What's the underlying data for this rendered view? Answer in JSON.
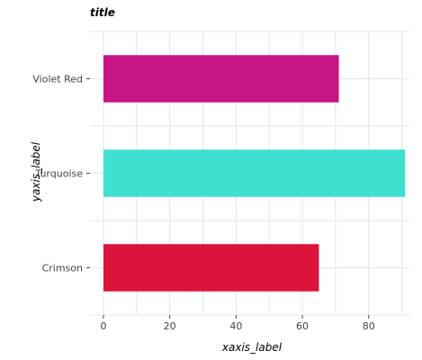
{
  "chart_data": {
    "type": "bar",
    "orientation": "horizontal",
    "title": "title",
    "xlabel": "xaxis_label",
    "ylabel": "yaxis_label",
    "categories": [
      "Crimson",
      "Turquoise",
      "Violet Red"
    ],
    "values": [
      65,
      91,
      71
    ],
    "colors": [
      "#dc143c",
      "#40e0d0",
      "#c71585"
    ],
    "xlim": [
      0,
      95
    ],
    "xticks": [
      0,
      20,
      40,
      60,
      80
    ],
    "grid": true,
    "legend": "none"
  }
}
